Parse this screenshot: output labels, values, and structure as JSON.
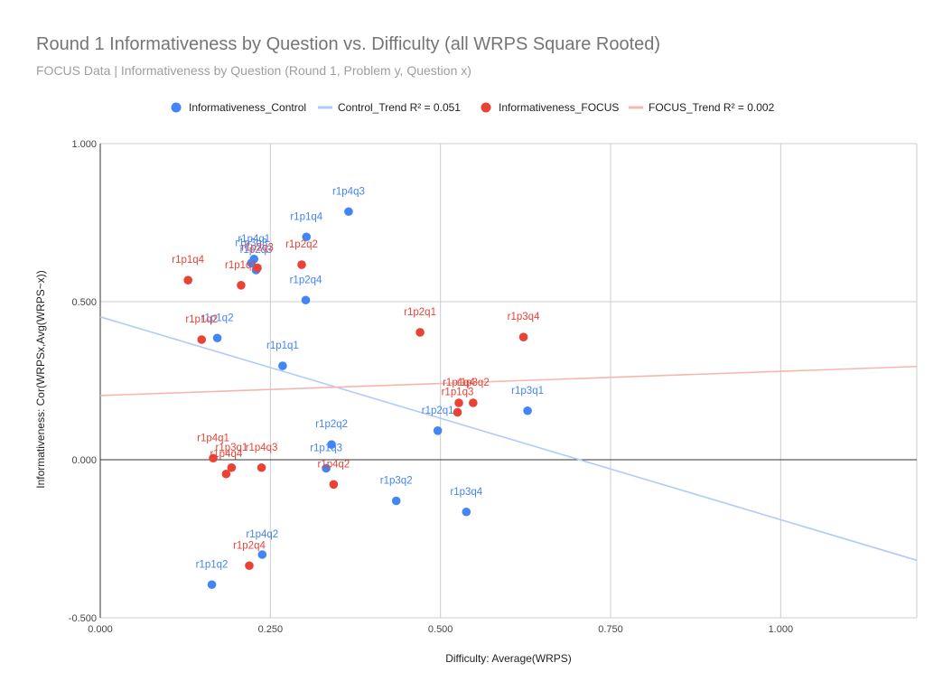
{
  "chart_data": {
    "type": "scatter",
    "title": "Round 1 Informativeness by Question vs. Difficulty (all WRPS Square Rooted)",
    "subtitle": "FOCUS Data | Informativeness by Question (Round 1, Problem y, Question x)",
    "xlabel": "Difficulty: Average(WRPS)",
    "ylabel": "Informativeness: Cor(WRPSx,Avg(WRPS~x))",
    "xlim": [
      0,
      1.2
    ],
    "ylim": [
      -0.5,
      1.0
    ],
    "x_ticks": [
      "0.000",
      "0.250",
      "0.500",
      "0.750",
      "1.000"
    ],
    "y_ticks": [
      "1.000",
      "0.500",
      "0.000",
      "-0.500"
    ],
    "grid": true,
    "legend_position": "top",
    "series": [
      {
        "name": "Informativeness_Control",
        "color": "#4285f4",
        "points": [
          {
            "label": "r1p4q3",
            "x": 0.365,
            "y": 0.785
          },
          {
            "label": "r1p1q4",
            "x": 0.303,
            "y": 0.705
          },
          {
            "label": "r1p4q1",
            "x": 0.226,
            "y": 0.635
          },
          {
            "label": "r1p3q3",
            "x": 0.222,
            "y": 0.622
          },
          {
            "label": "r1p2q3",
            "x": 0.229,
            "y": 0.6
          },
          {
            "label": "r1p2q4",
            "x": 0.302,
            "y": 0.505
          },
          {
            "label": "r1p1q2",
            "x": 0.172,
            "y": 0.385
          },
          {
            "label": "r1p1q1",
            "x": 0.268,
            "y": 0.297
          },
          {
            "label": "r1p3q1",
            "x": 0.628,
            "y": 0.155
          },
          {
            "label": "r1p2q1",
            "x": 0.496,
            "y": 0.092
          },
          {
            "label": "r1p2q2",
            "x": 0.34,
            "y": 0.048
          },
          {
            "label": "r1p1q3",
            "x": 0.332,
            "y": -0.027
          },
          {
            "label": "r1p3q2",
            "x": 0.435,
            "y": -0.13
          },
          {
            "label": "r1p3q4",
            "x": 0.538,
            "y": -0.165
          },
          {
            "label": "r1p4q2",
            "x": 0.238,
            "y": -0.3
          },
          {
            "label": "r1p1q2",
            "x": 0.164,
            "y": -0.395
          }
        ]
      },
      {
        "name": "Control_Trend R² = 0.051",
        "type": "line",
        "color": "#aecbfa",
        "x": [
          0,
          1.2
        ],
        "y": [
          0.452,
          -0.318
        ]
      },
      {
        "name": "Informativeness_FOCUS",
        "color": "#ea4335",
        "points": [
          {
            "label": "r1p2q3",
            "x": 0.231,
            "y": 0.607
          },
          {
            "label": "r1p2q2",
            "x": 0.296,
            "y": 0.617
          },
          {
            "label": "r1p1q4",
            "x": 0.129,
            "y": 0.568
          },
          {
            "label": "r1p1q1",
            "x": 0.207,
            "y": 0.552
          },
          {
            "label": "r1p2q1",
            "x": 0.47,
            "y": 0.403
          },
          {
            "label": "r1p3q4",
            "x": 0.622,
            "y": 0.388
          },
          {
            "label": "r1p1q2",
            "x": 0.149,
            "y": 0.38
          },
          {
            "label": "r1p1q3",
            "x": 0.525,
            "y": 0.15
          },
          {
            "label": "r1p1q4",
            "x": 0.527,
            "y": 0.18
          },
          {
            "label": "r1p3q2",
            "x": 0.548,
            "y": 0.18
          },
          {
            "label": "r1p4q1",
            "x": 0.166,
            "y": 0.005
          },
          {
            "label": "r1p3q1",
            "x": 0.193,
            "y": -0.025
          },
          {
            "label": "r1p4q3",
            "x": 0.237,
            "y": -0.025
          },
          {
            "label": "r1p4q4",
            "x": 0.185,
            "y": -0.045
          },
          {
            "label": "r1p4q2",
            "x": 0.343,
            "y": -0.078
          },
          {
            "label": "r1p2q4",
            "x": 0.219,
            "y": -0.335
          }
        ]
      },
      {
        "name": "FOCUS_Trend R² = 0.002",
        "type": "line",
        "color": "#f4b7b0",
        "x": [
          0,
          1.2
        ],
        "y": [
          0.203,
          0.295
        ]
      }
    ]
  }
}
